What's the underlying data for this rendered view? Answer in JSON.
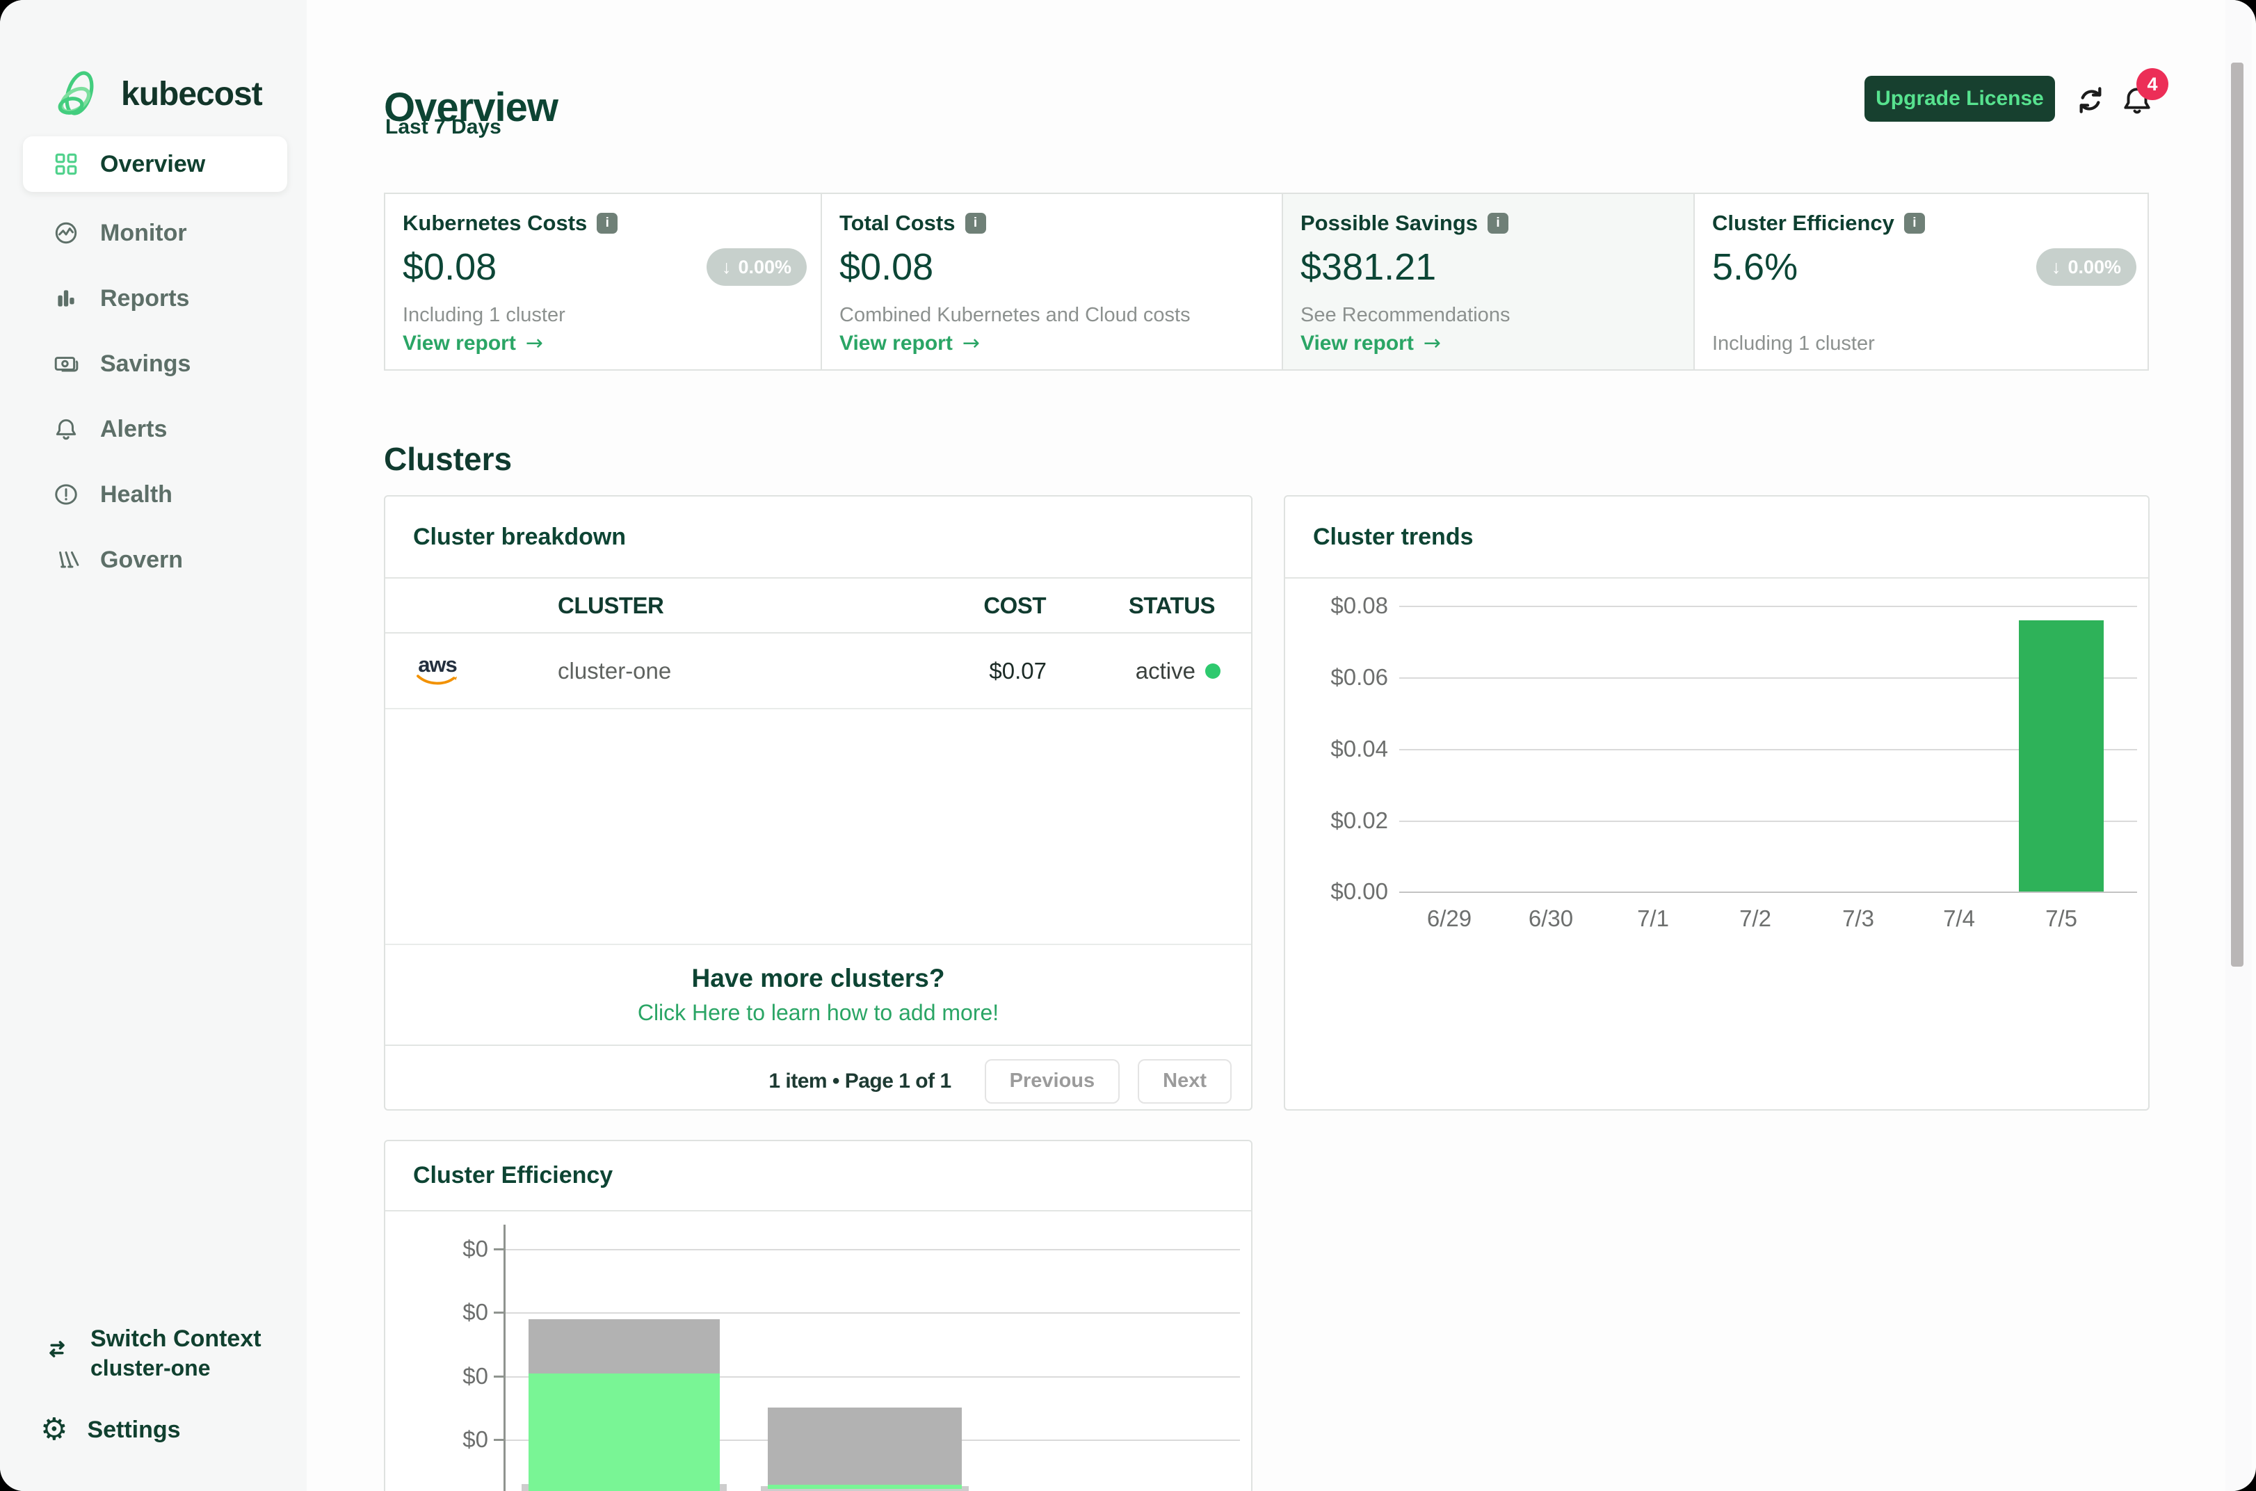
{
  "app": {
    "logo_text": "kubecost"
  },
  "sidebar": {
    "items": [
      {
        "label": "Overview",
        "icon": "grid",
        "active": true
      },
      {
        "label": "Monitor",
        "icon": "monitor"
      },
      {
        "label": "Reports",
        "icon": "bar-chart"
      },
      {
        "label": "Savings",
        "icon": "banknote"
      },
      {
        "label": "Alerts",
        "icon": "bell"
      },
      {
        "label": "Health",
        "icon": "alert-circle"
      },
      {
        "label": "Govern",
        "icon": "pillars"
      }
    ],
    "footer": {
      "switch_context_label": "Switch Context",
      "context_value": "cluster-one",
      "settings_label": "Settings"
    }
  },
  "header": {
    "title": "Overview",
    "subtitle": "Last 7 Days",
    "upgrade_button_label": "Upgrade License",
    "notification_count": "4"
  },
  "stat_cards": [
    {
      "title": "Kubernetes Costs",
      "info_glyph": "i",
      "value": "$0.08",
      "badge": "0.00%",
      "subtitle": "Including 1 cluster",
      "link": "View report"
    },
    {
      "title": "Total Costs",
      "info_glyph": "i",
      "value": "$0.08",
      "subtitle": "Combined Kubernetes and Cloud costs",
      "link": "View report"
    },
    {
      "title": "Possible Savings",
      "info_glyph": "i",
      "value": "$381.21",
      "subtitle": "See Recommendations",
      "link": "View report"
    },
    {
      "title": "Cluster Efficiency",
      "info_glyph": "i",
      "value": "5.6%",
      "badge": "0.00%",
      "subtitle": "Including 1 cluster"
    }
  ],
  "clusters_section": {
    "heading": "Clusters",
    "breakdown": {
      "title": "Cluster breakdown",
      "columns": [
        "CLUSTER",
        "COST",
        "STATUS"
      ],
      "rows": [
        {
          "provider": "aws",
          "cluster": "cluster-one",
          "cost": "$0.07",
          "status": "active"
        }
      ],
      "prompt_title": "Have more clusters?",
      "prompt_link": "Click Here to learn how to add more!",
      "pagination": {
        "summary": "1 item • Page 1 of 1",
        "prev_label": "Previous",
        "next_label": "Next"
      }
    }
  },
  "chart_data": [
    {
      "type": "bar",
      "title": "Cluster trends",
      "categories": [
        "6/29",
        "6/30",
        "7/1",
        "7/2",
        "7/3",
        "7/4",
        "7/5"
      ],
      "values": [
        0,
        0,
        0,
        0,
        0,
        0,
        0.076
      ],
      "ytick_labels": [
        "$0.08",
        "$0.06",
        "$0.04",
        "$0.02",
        "$0.00"
      ],
      "ylim": [
        0,
        0.08
      ],
      "ylabel": "",
      "xlabel": "",
      "grid": true,
      "legend": false,
      "bar_color": "#2eb259"
    },
    {
      "type": "bar",
      "variant": "stacked-overlay",
      "title": "Cluster Efficiency",
      "note": "chart is cut off at the bottom edge of the screenshot; all visible y ticks read $0",
      "ytick_labels": [
        "$0",
        "$0",
        "$0",
        "$0"
      ],
      "grid": true,
      "bars": [
        {
          "segments": [
            {
              "name": "idle-cost",
              "color": "#b2b2b2",
              "top_frac": 0.289,
              "bottom_frac": 0.511
            },
            {
              "name": "efficient-cost",
              "color": "#79f595",
              "top_frac": 0.511,
              "bottom_frac": 1.0
            }
          ]
        },
        {
          "segments": [
            {
              "name": "idle-cost",
              "color": "#b2b2b2",
              "top_frac": 0.651,
              "bottom_frac": 0.969
            },
            {
              "name": "efficient-cost",
              "color": "#79f595",
              "top_frac": 0.969,
              "bottom_frac": 0.986
            }
          ]
        }
      ]
    }
  ],
  "colors": {
    "brand_dark_green": "#0d4433",
    "accent_green": "#2aa565",
    "light_green": "#57e28f",
    "trend_bar_green": "#2eb259",
    "efficiency_green": "#79f595",
    "notification_red": "#ec2e57",
    "badge_gray": "#c7d0cc",
    "status_dot_green": "#2ec96e",
    "sidebar_bg": "#f6f7f7"
  }
}
